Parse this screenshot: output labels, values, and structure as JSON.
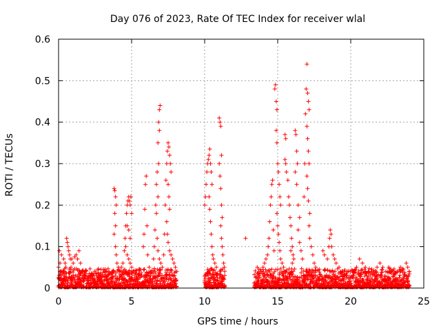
{
  "chart_data": {
    "type": "scatter",
    "title": "Day 076 of 2023, Rate Of TEC Index for receiver wlal",
    "xlabel": "GPS time / hours",
    "ylabel": "ROTI / TECUs",
    "xlim": [
      0,
      25
    ],
    "ylim": [
      0,
      0.6
    ],
    "xticks": [
      0,
      5,
      10,
      15,
      20,
      25
    ],
    "xtick_labels": [
      "0",
      "5",
      "10",
      "15",
      "20",
      "25"
    ],
    "yticks": [
      0,
      0.1,
      0.2,
      0.3,
      0.4,
      0.5,
      0.6
    ],
    "ytick_labels": [
      "0",
      "0.1",
      "0.2",
      "0.3",
      "0.4",
      "0.5",
      "0.6"
    ],
    "grid": true,
    "marker": "+",
    "color": "#ff0000",
    "series": [
      {
        "points": [
          [
            0.0,
            0.05
          ],
          [
            0.05,
            0.09
          ],
          [
            0.1,
            0.06
          ],
          [
            0.15,
            0.03
          ],
          [
            0.2,
            0.08
          ],
          [
            0.3,
            0.04
          ],
          [
            0.35,
            0.07
          ],
          [
            0.4,
            0.02
          ],
          [
            0.45,
            0.06
          ],
          [
            0.5,
            0.05
          ],
          [
            0.55,
            0.12
          ],
          [
            0.6,
            0.11
          ],
          [
            0.65,
            0.1
          ],
          [
            0.7,
            0.09
          ],
          [
            0.75,
            0.08
          ],
          [
            0.8,
            0.07
          ],
          [
            0.85,
            0.05
          ],
          [
            0.9,
            0.07
          ],
          [
            1.0,
            0.06
          ],
          [
            1.1,
            0.075
          ],
          [
            1.2,
            0.08
          ],
          [
            1.3,
            0.07
          ],
          [
            1.4,
            0.09
          ],
          [
            1.5,
            0.06
          ],
          [
            1.6,
            0.04
          ],
          [
            1.8,
            0.03
          ],
          [
            2.0,
            0.02
          ],
          [
            2.2,
            0.03
          ],
          [
            2.4,
            0.02
          ],
          [
            2.6,
            0.03
          ],
          [
            2.8,
            0.02
          ],
          [
            3.0,
            0.03
          ],
          [
            3.2,
            0.04
          ],
          [
            3.4,
            0.03
          ],
          [
            3.6,
            0.035
          ],
          [
            3.7,
            0.04
          ],
          [
            3.8,
            0.24
          ],
          [
            3.85,
            0.235
          ],
          [
            3.9,
            0.22
          ],
          [
            3.95,
            0.2
          ],
          [
            3.85,
            0.18
          ],
          [
            3.9,
            0.15
          ],
          [
            3.8,
            0.13
          ],
          [
            3.9,
            0.1
          ],
          [
            3.95,
            0.08
          ],
          [
            4.0,
            0.06
          ],
          [
            4.1,
            0.05
          ],
          [
            4.2,
            0.04
          ],
          [
            4.3,
            0.05
          ],
          [
            4.4,
            0.06
          ],
          [
            4.5,
            0.09
          ],
          [
            4.55,
            0.12
          ],
          [
            4.6,
            0.15
          ],
          [
            4.65,
            0.18
          ],
          [
            4.7,
            0.2
          ],
          [
            4.75,
            0.21
          ],
          [
            4.8,
            0.22
          ],
          [
            4.85,
            0.21
          ],
          [
            4.9,
            0.2
          ],
          [
            4.95,
            0.22
          ],
          [
            5.0,
            0.18
          ],
          [
            4.7,
            0.15
          ],
          [
            4.8,
            0.14
          ],
          [
            4.9,
            0.12
          ],
          [
            4.6,
            0.1
          ],
          [
            4.7,
            0.08
          ],
          [
            4.8,
            0.07
          ],
          [
            4.9,
            0.06
          ],
          [
            5.0,
            0.05
          ],
          [
            5.1,
            0.04
          ],
          [
            5.3,
            0.035
          ],
          [
            5.5,
            0.03
          ],
          [
            5.7,
            0.03
          ],
          [
            5.8,
            0.1
          ],
          [
            5.85,
            0.13
          ],
          [
            5.9,
            0.19
          ],
          [
            5.95,
            0.25
          ],
          [
            6.0,
            0.27
          ],
          [
            6.05,
            0.15
          ],
          [
            6.1,
            0.08
          ],
          [
            6.2,
            0.05
          ],
          [
            6.3,
            0.04
          ],
          [
            6.4,
            0.035
          ],
          [
            6.5,
            0.07
          ],
          [
            6.55,
            0.1
          ],
          [
            6.6,
            0.14
          ],
          [
            6.65,
            0.2
          ],
          [
            6.7,
            0.25
          ],
          [
            6.75,
            0.28
          ],
          [
            6.8,
            0.35
          ],
          [
            6.85,
            0.4
          ],
          [
            6.9,
            0.43
          ],
          [
            6.95,
            0.44
          ],
          [
            6.9,
            0.38
          ],
          [
            6.85,
            0.3
          ],
          [
            6.8,
            0.22
          ],
          [
            6.7,
            0.18
          ],
          [
            6.75,
            0.12
          ],
          [
            6.8,
            0.09
          ],
          [
            6.9,
            0.07
          ],
          [
            7.0,
            0.06
          ],
          [
            7.1,
            0.05
          ],
          [
            7.2,
            0.08
          ],
          [
            7.25,
            0.13
          ],
          [
            7.3,
            0.2
          ],
          [
            7.35,
            0.26
          ],
          [
            7.4,
            0.3
          ],
          [
            7.45,
            0.33
          ],
          [
            7.5,
            0.35
          ],
          [
            7.55,
            0.34
          ],
          [
            7.6,
            0.32
          ],
          [
            7.65,
            0.3
          ],
          [
            7.7,
            0.28
          ],
          [
            7.5,
            0.25
          ],
          [
            7.55,
            0.22
          ],
          [
            7.6,
            0.19
          ],
          [
            7.4,
            0.16
          ],
          [
            7.45,
            0.13
          ],
          [
            7.5,
            0.11
          ],
          [
            7.6,
            0.09
          ],
          [
            7.7,
            0.08
          ],
          [
            7.8,
            0.07
          ],
          [
            7.9,
            0.06
          ],
          [
            8.0,
            0.05
          ],
          [
            8.1,
            0.04
          ],
          [
            10.0,
            0.2
          ],
          [
            10.05,
            0.22
          ],
          [
            10.1,
            0.25
          ],
          [
            10.15,
            0.28
          ],
          [
            10.2,
            0.3
          ],
          [
            10.25,
            0.31
          ],
          [
            10.3,
            0.32
          ],
          [
            10.35,
            0.335
          ],
          [
            10.4,
            0.3
          ],
          [
            10.45,
            0.28
          ],
          [
            10.5,
            0.25
          ],
          [
            10.3,
            0.22
          ],
          [
            10.35,
            0.19
          ],
          [
            10.4,
            0.16
          ],
          [
            10.45,
            0.13
          ],
          [
            10.5,
            0.1
          ],
          [
            10.55,
            0.08
          ],
          [
            10.6,
            0.07
          ],
          [
            10.7,
            0.06
          ],
          [
            10.8,
            0.05
          ],
          [
            11.0,
            0.41
          ],
          [
            11.05,
            0.4
          ],
          [
            11.1,
            0.39
          ],
          [
            11.15,
            0.32
          ],
          [
            11.0,
            0.3
          ],
          [
            11.05,
            0.27
          ],
          [
            11.1,
            0.24
          ],
          [
            11.15,
            0.2
          ],
          [
            11.2,
            0.17
          ],
          [
            11.1,
            0.15
          ],
          [
            11.15,
            0.12
          ],
          [
            11.2,
            0.1
          ],
          [
            11.25,
            0.08
          ],
          [
            11.3,
            0.06
          ],
          [
            11.35,
            0.05
          ],
          [
            12.8,
            0.12
          ],
          [
            13.6,
            0.05
          ],
          [
            13.8,
            0.04
          ],
          [
            14.0,
            0.05
          ],
          [
            14.1,
            0.06
          ],
          [
            14.2,
            0.07
          ],
          [
            14.3,
            0.08
          ],
          [
            14.35,
            0.1
          ],
          [
            14.4,
            0.12
          ],
          [
            14.45,
            0.16
          ],
          [
            14.5,
            0.2
          ],
          [
            14.55,
            0.22
          ],
          [
            14.6,
            0.25
          ],
          [
            14.65,
            0.26
          ],
          [
            14.7,
            0.14
          ],
          [
            14.75,
            0.09
          ],
          [
            14.8,
            0.48
          ],
          [
            14.85,
            0.49
          ],
          [
            14.9,
            0.45
          ],
          [
            14.95,
            0.43
          ],
          [
            14.9,
            0.38
          ],
          [
            14.95,
            0.35
          ],
          [
            15.0,
            0.3
          ],
          [
            15.05,
            0.28
          ],
          [
            15.1,
            0.25
          ],
          [
            15.15,
            0.22
          ],
          [
            15.2,
            0.2
          ],
          [
            14.95,
            0.18
          ],
          [
            15.0,
            0.15
          ],
          [
            15.05,
            0.13
          ],
          [
            15.1,
            0.11
          ],
          [
            15.15,
            0.09
          ],
          [
            15.2,
            0.07
          ],
          [
            15.3,
            0.06
          ],
          [
            15.4,
            0.05
          ],
          [
            15.5,
            0.37
          ],
          [
            15.55,
            0.36
          ],
          [
            15.5,
            0.31
          ],
          [
            15.55,
            0.3
          ],
          [
            15.6,
            0.28
          ],
          [
            15.7,
            0.26
          ],
          [
            15.75,
            0.22
          ],
          [
            15.8,
            0.2
          ],
          [
            15.85,
            0.17
          ],
          [
            15.9,
            0.15
          ],
          [
            15.95,
            0.12
          ],
          [
            16.0,
            0.1
          ],
          [
            16.05,
            0.08
          ],
          [
            16.1,
            0.07
          ],
          [
            15.9,
            0.09
          ],
          [
            16.0,
            0.06
          ],
          [
            16.2,
            0.38
          ],
          [
            16.25,
            0.37
          ],
          [
            16.3,
            0.33
          ],
          [
            16.35,
            0.3
          ],
          [
            16.2,
            0.28
          ],
          [
            16.3,
            0.25
          ],
          [
            16.4,
            0.2
          ],
          [
            16.5,
            0.17
          ],
          [
            16.4,
            0.14
          ],
          [
            16.5,
            0.11
          ],
          [
            16.6,
            0.09
          ],
          [
            16.7,
            0.07
          ],
          [
            16.8,
            0.22
          ],
          [
            16.85,
            0.3
          ],
          [
            16.9,
            0.42
          ],
          [
            16.95,
            0.48
          ],
          [
            17.0,
            0.54
          ],
          [
            17.05,
            0.47
          ],
          [
            17.1,
            0.45
          ],
          [
            17.15,
            0.43
          ],
          [
            17.0,
            0.39
          ],
          [
            17.05,
            0.36
          ],
          [
            17.1,
            0.33
          ],
          [
            17.15,
            0.3
          ],
          [
            17.0,
            0.27
          ],
          [
            17.05,
            0.24
          ],
          [
            17.1,
            0.21
          ],
          [
            17.2,
            0.18
          ],
          [
            17.15,
            0.15
          ],
          [
            17.2,
            0.12
          ],
          [
            17.3,
            0.1
          ],
          [
            17.4,
            0.08
          ],
          [
            17.5,
            0.06
          ],
          [
            17.6,
            0.05
          ],
          [
            18.1,
            0.09
          ],
          [
            18.2,
            0.08
          ],
          [
            18.4,
            0.07
          ],
          [
            18.5,
            0.1
          ],
          [
            18.55,
            0.12
          ],
          [
            18.6,
            0.14
          ],
          [
            18.65,
            0.13
          ],
          [
            18.7,
            0.1
          ],
          [
            18.8,
            0.08
          ],
          [
            18.9,
            0.07
          ],
          [
            19.0,
            0.06
          ],
          [
            19.2,
            0.05
          ],
          [
            19.4,
            0.04
          ],
          [
            19.6,
            0.03
          ],
          [
            20.2,
            0.04
          ],
          [
            20.4,
            0.05
          ],
          [
            20.6,
            0.07
          ],
          [
            20.8,
            0.06
          ],
          [
            21.0,
            0.05
          ],
          [
            21.2,
            0.04
          ],
          [
            21.4,
            0.04
          ],
          [
            21.6,
            0.035
          ],
          [
            21.8,
            0.05
          ],
          [
            22.0,
            0.06
          ],
          [
            22.2,
            0.05
          ],
          [
            22.4,
            0.04
          ],
          [
            22.6,
            0.05
          ],
          [
            22.8,
            0.04
          ],
          [
            23.0,
            0.035
          ],
          [
            23.2,
            0.04
          ],
          [
            23.4,
            0.05
          ],
          [
            23.6,
            0.045
          ],
          [
            23.8,
            0.06
          ],
          [
            23.9,
            0.05
          ],
          [
            24.0,
            0.04
          ]
        ]
      }
    ],
    "baseline_segments": [
      [
        0.0,
        8.1
      ],
      [
        10.0,
        11.4
      ],
      [
        13.4,
        24.05
      ]
    ]
  }
}
